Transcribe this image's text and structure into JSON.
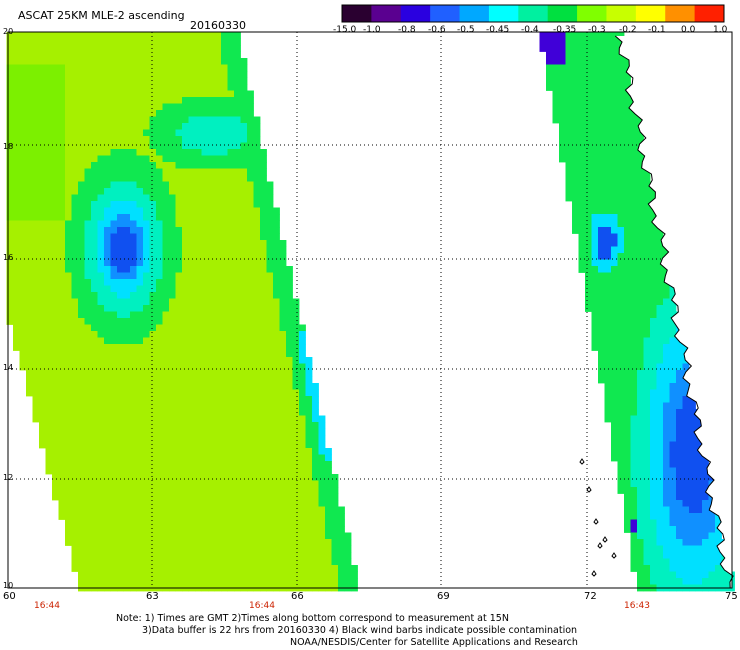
{
  "header": {
    "title": "ASCAT 25KM MLE-2 ascending",
    "date": "20160330"
  },
  "colorbar": {
    "labels": [
      "-15.0",
      "-1.0",
      "-0.8",
      "-0.6",
      "-0.5",
      "-0.45",
      "-0.4",
      "-0.35",
      "-0.3",
      "-0.2",
      "-0.1",
      "0.0",
      "1.0"
    ],
    "colors": [
      "#2a0030",
      "#5a0090",
      "#2a00e0",
      "#2060ff",
      "#00a8ff",
      "#00ffff",
      "#00f0a0",
      "#00e040",
      "#80ff00",
      "#c8ff00",
      "#ffff00",
      "#ff9000",
      "#ff2000"
    ]
  },
  "map": {
    "lat_labels": [
      "20",
      "18",
      "16",
      "14",
      "12",
      "10"
    ],
    "lon_labels": [
      "60",
      "63",
      "66",
      "69",
      "72",
      "75"
    ],
    "pass_times": [
      "16:44",
      "16:44",
      "16:43"
    ],
    "palette": {
      "high": "#a6f000",
      "mid": "#7cf000",
      "green": "#10e850",
      "aqua": "#00f0c0",
      "cyan": "#00e0ff",
      "lightblue": "#1090ff",
      "blue": "#1050f0",
      "deep": "#4000d8",
      "land": "#ffffff",
      "coast": "#000000",
      "grid": "#000000"
    }
  },
  "notes": {
    "line1": "Note: 1) Times are GMT 2)Times along bottom correspond to measurement at 15N",
    "line2": "3)Data buffer is 22 hrs from 20160330 4) Black wind barbs indicate possible contamination",
    "line3": "NOAA/NESDIS/Center for Satellite Applications and Research"
  }
}
